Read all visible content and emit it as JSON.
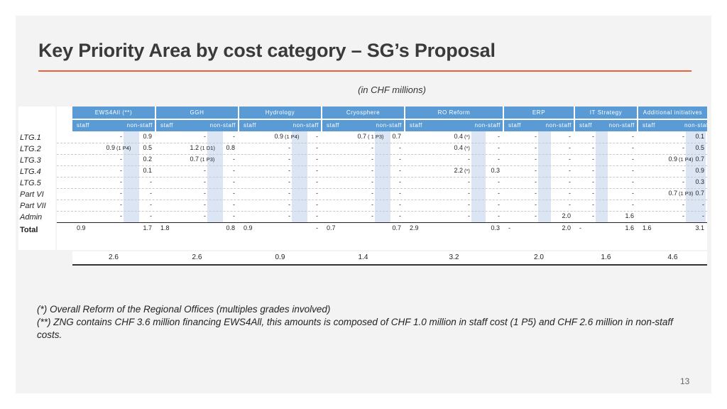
{
  "title": "Key Priority Area by cost category – SG’s Proposal",
  "subtitle": "(in CHF millions)",
  "groups": [
    "EWS4All (**)",
    "GGH",
    "Hydrology",
    "Cryosphere",
    "RO Reform",
    "ERP",
    "IT Strategy",
    "Additional initiatives"
  ],
  "sub_headers": {
    "staff": "staff",
    "non_staff": "non-staff"
  },
  "row_labels": [
    "LTG.1",
    "LTG.2",
    "LTG.3",
    "LTG.4",
    "LTG.5",
    "Part VI",
    "Part VII",
    "Admin",
    "Total"
  ],
  "rows": [
    [
      [
        "-",
        ""
      ],
      "0.9",
      [
        "-",
        ""
      ],
      "-",
      [
        "0.9",
        "(1 P4)"
      ],
      "-",
      [
        "0.7",
        "( 1 P3)"
      ],
      "0.7",
      [
        "0.4",
        "(*)"
      ],
      "-",
      [
        "-",
        ""
      ],
      "-",
      [
        "-",
        ""
      ],
      "-",
      [
        "-",
        ""
      ],
      "0.1"
    ],
    [
      [
        "0.9",
        "(1 P4)"
      ],
      "0.5",
      [
        "1.2",
        "(1 D1)"
      ],
      "0.8",
      [
        "-",
        ""
      ],
      "-",
      [
        "-",
        ""
      ],
      "-",
      [
        "0.4",
        "(*)"
      ],
      "-",
      [
        "-",
        ""
      ],
      "-",
      [
        "-",
        ""
      ],
      "-",
      [
        "-",
        ""
      ],
      "0.5"
    ],
    [
      [
        "-",
        ""
      ],
      "0.2",
      [
        "0.7",
        "(1 P3)"
      ],
      "-",
      [
        "-",
        ""
      ],
      "-",
      [
        "-",
        ""
      ],
      "-",
      [
        "-",
        ""
      ],
      "-",
      [
        "-",
        ""
      ],
      "-",
      [
        "-",
        ""
      ],
      "-",
      [
        "0.9",
        "(1 P4)"
      ],
      "0.7"
    ],
    [
      [
        "-",
        ""
      ],
      "0.1",
      [
        "-",
        ""
      ],
      "-",
      [
        "-",
        ""
      ],
      "-",
      [
        "-",
        ""
      ],
      "-",
      [
        "2.2",
        "(*)"
      ],
      "0.3",
      [
        "-",
        ""
      ],
      "-",
      [
        "-",
        ""
      ],
      "-",
      [
        "-",
        ""
      ],
      "0.9"
    ],
    [
      [
        "-",
        ""
      ],
      "-",
      [
        "-",
        ""
      ],
      "-",
      [
        "-",
        ""
      ],
      "-",
      [
        "-",
        ""
      ],
      "-",
      [
        "-",
        ""
      ],
      "-",
      [
        "-",
        ""
      ],
      "-",
      [
        "-",
        ""
      ],
      "-",
      [
        "-",
        ""
      ],
      "0.3"
    ],
    [
      [
        "-",
        ""
      ],
      "-",
      [
        "-",
        ""
      ],
      "-",
      [
        "-",
        ""
      ],
      "-",
      [
        "-",
        ""
      ],
      "-",
      [
        "-",
        ""
      ],
      "-",
      [
        "-",
        ""
      ],
      "-",
      [
        "-",
        ""
      ],
      "-",
      [
        "0.7",
        "(1 P3)"
      ],
      "0.7"
    ],
    [
      [
        "-",
        ""
      ],
      "-",
      [
        "-",
        ""
      ],
      "-",
      [
        "-",
        ""
      ],
      "-",
      [
        "-",
        ""
      ],
      "-",
      [
        "-",
        ""
      ],
      "-",
      [
        "-",
        ""
      ],
      "-",
      [
        "-",
        ""
      ],
      "-",
      [
        "-",
        ""
      ],
      "-"
    ],
    [
      [
        "-",
        ""
      ],
      "-",
      [
        "-",
        ""
      ],
      "-",
      [
        "-",
        ""
      ],
      "-",
      [
        "-",
        ""
      ],
      "-",
      [
        "-",
        ""
      ],
      "-",
      [
        "-",
        ""
      ],
      "2.0",
      [
        "-",
        ""
      ],
      "1.6",
      [
        "-",
        ""
      ],
      "-"
    ]
  ],
  "total_row": [
    "0.9",
    "1.7",
    "1.8",
    "0.8",
    "0.9",
    "-",
    "0.7",
    "0.7",
    "2.9",
    "0.3",
    "-",
    "2.0",
    "-",
    "1.6",
    "1.6",
    "3.1"
  ],
  "group_totals": [
    "2.6",
    "2.6",
    "0.9",
    "1.4",
    "3.2",
    "2.0",
    "1.6",
    "4.6"
  ],
  "notes": [
    "(*) Overall Reform of the Regional Offices (multiples grades involved)",
    "(**) ZNG contains CHF 3.6 million financing EWS4All, this amounts is composed of CHF 1.0 million in staff cost (1 P5) and CHF 2.6 million in non-staff costs."
  ],
  "page_number": "13",
  "colors": {
    "header_fill": "#5b9bd5",
    "band_fill": "#dbe5f4",
    "accent_rule": "#e8603c"
  }
}
